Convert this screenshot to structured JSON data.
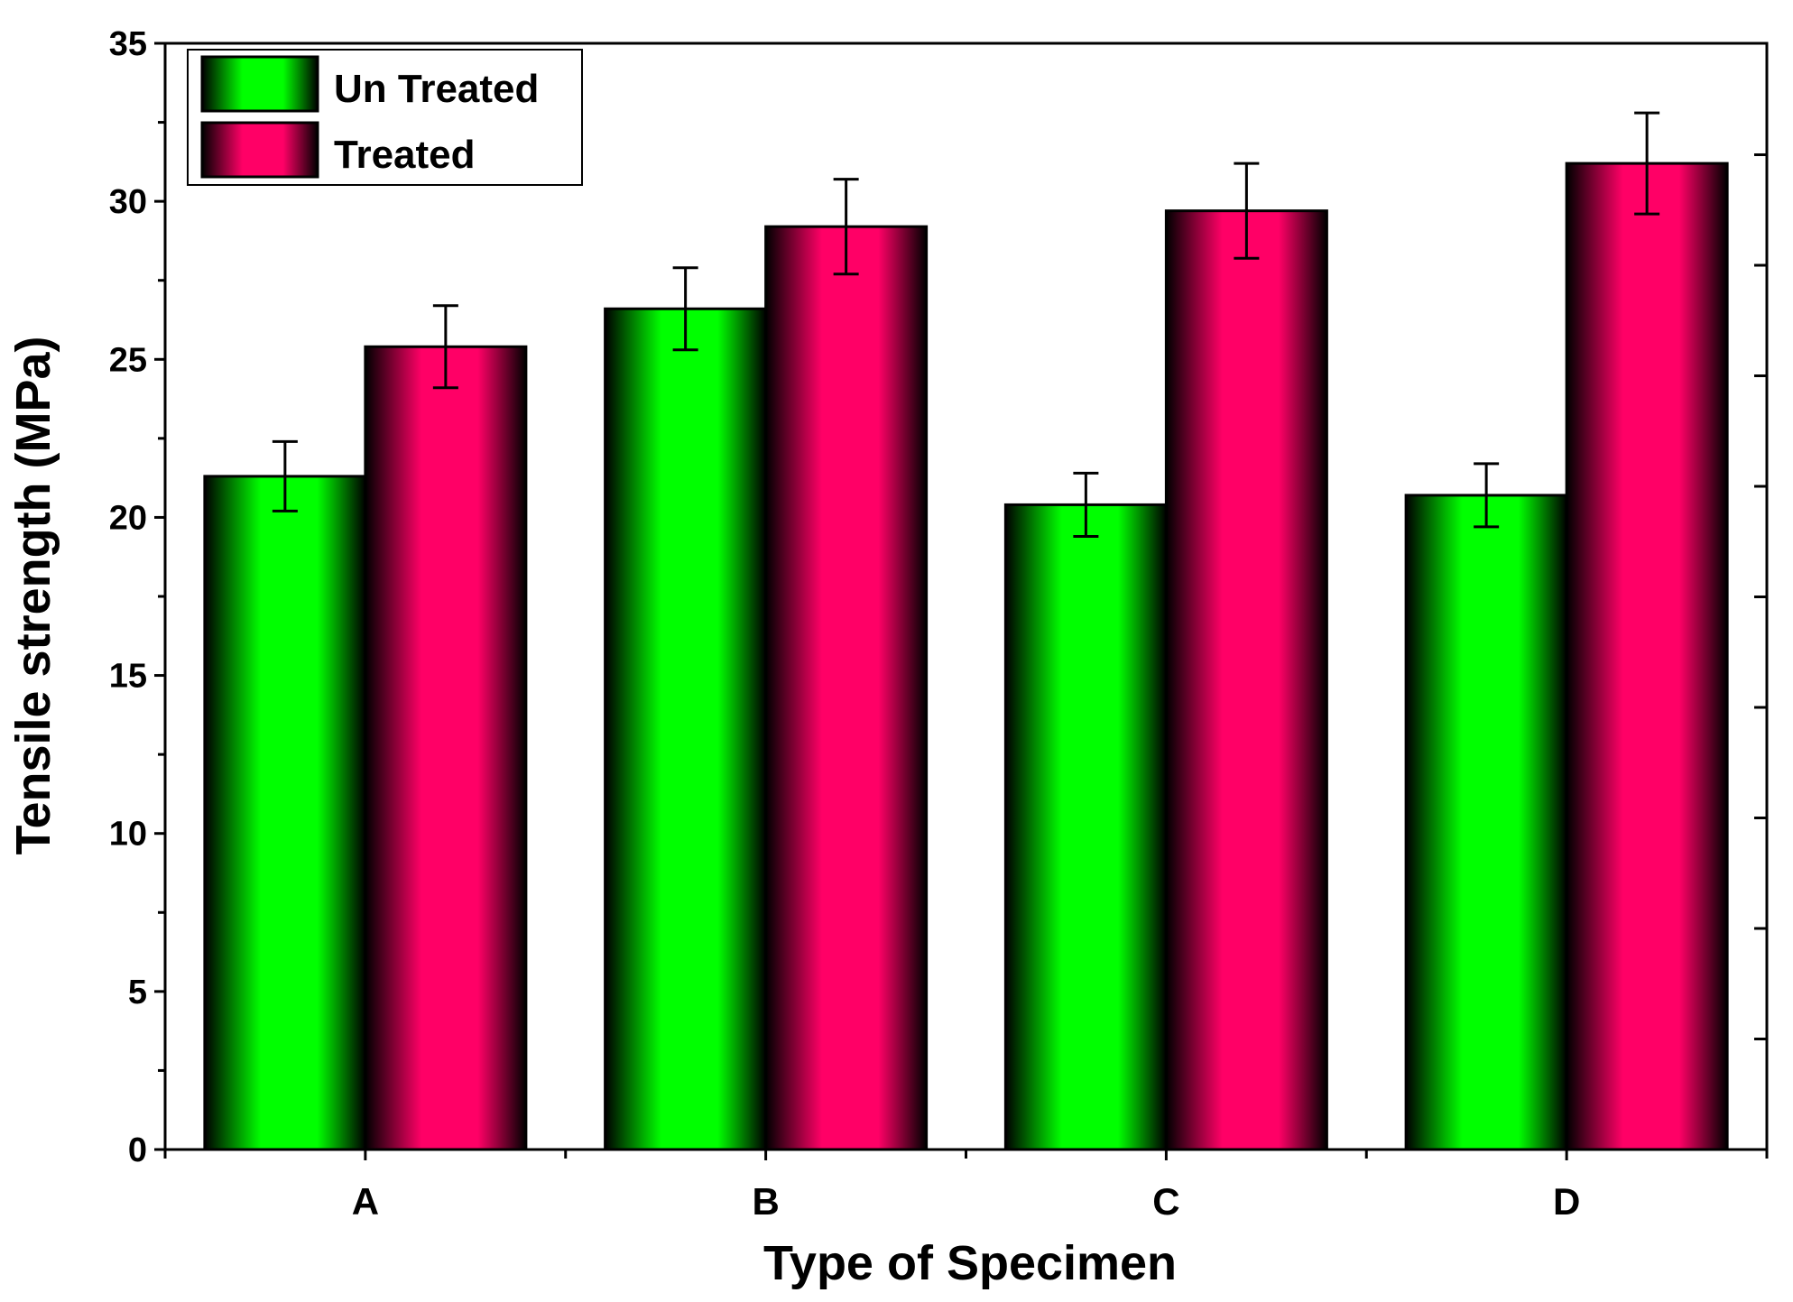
{
  "chart_data": {
    "type": "bar",
    "title": "",
    "xlabel": "Type of Specimen",
    "ylabel": "Tensile strength (MPa)",
    "categories": [
      "A",
      "B",
      "C",
      "D"
    ],
    "ylim": [
      0,
      35
    ],
    "yticks": [
      0,
      5,
      10,
      15,
      20,
      25,
      30,
      35
    ],
    "legend_position": "top-left",
    "grid": false,
    "series": [
      {
        "name": "Un Treated",
        "values": [
          21.3,
          26.6,
          20.4,
          20.7
        ],
        "errors": [
          1.1,
          1.3,
          1.0,
          1.0
        ],
        "color": "#00ff00"
      },
      {
        "name": "Treated",
        "values": [
          25.4,
          29.2,
          29.7,
          31.2
        ],
        "errors": [
          1.3,
          1.5,
          1.5,
          1.6
        ],
        "color": "#ff0066"
      }
    ]
  }
}
